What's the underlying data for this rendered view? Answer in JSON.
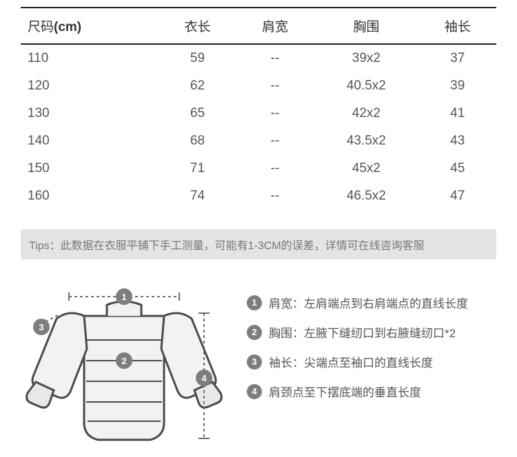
{
  "table": {
    "columns": [
      "尺码(cm)",
      "衣长",
      "肩宽",
      "胸围",
      "袖长"
    ],
    "rows": [
      [
        "110",
        "59",
        "--",
        "39x2",
        "37"
      ],
      [
        "120",
        "62",
        "--",
        "40.5x2",
        "39"
      ],
      [
        "130",
        "65",
        "--",
        "42x2",
        "41"
      ],
      [
        "140",
        "68",
        "--",
        "43.5x2",
        "43"
      ],
      [
        "150",
        "71",
        "--",
        "45x2",
        "45"
      ],
      [
        "160",
        "74",
        "--",
        "46.5x2",
        "47"
      ]
    ],
    "header_fontsize": 19,
    "body_fontsize": 19,
    "border_color": "#222222",
    "text_color": "#555555"
  },
  "tips": {
    "text": "Tips：此数据在衣服平铺下手工测量，可能有1-3CM的误差，详情可在线咨询客服",
    "bg": "#e4e4e4",
    "color": "#777777"
  },
  "diagram": {
    "stroke": "#4a4a4a",
    "fill": "#f2f2f2",
    "badge_bg": "#7d7d7d",
    "badge_fg": "#ffffff",
    "dash": "#6a6a6a"
  },
  "legend": {
    "items": [
      {
        "n": "1",
        "label": "肩宽：",
        "desc": "左肩端点到右肩端点的直线长度"
      },
      {
        "n": "2",
        "label": "胸围：",
        "desc": "左腋下缝纫口到右腋缝纫口*2"
      },
      {
        "n": "3",
        "label": "袖长：",
        "desc": "尖端点至袖口的直线长度"
      },
      {
        "n": "4",
        "label": "",
        "desc": "肩颈点至下摆底端的垂直长度"
      }
    ]
  }
}
